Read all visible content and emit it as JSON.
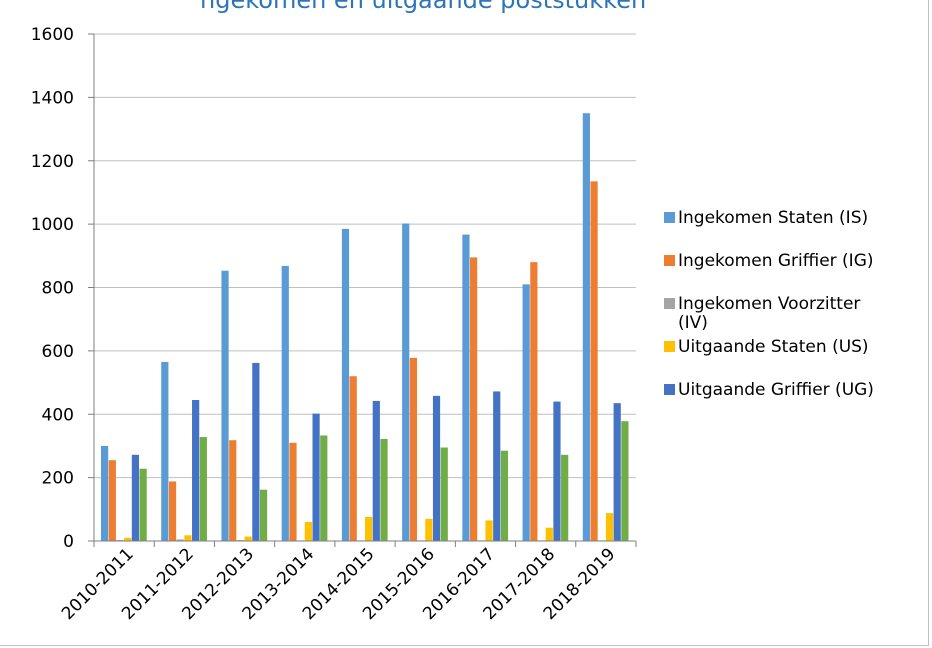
{
  "chart_data": {
    "type": "bar",
    "title": "ngekomen en uitgaande poststukken",
    "categories": [
      "2010-2011",
      "2011-2012",
      "2012-2013",
      "2013-2014",
      "2014-2015",
      "2015-2016",
      "2016-2017",
      "2017-2018",
      "2018-2019"
    ],
    "ylim": [
      0,
      1600
    ],
    "yticks": [
      0,
      200,
      400,
      600,
      800,
      1000,
      1200,
      1400,
      1600
    ],
    "grid": true,
    "legend_position": "right",
    "series": [
      {
        "name": "Ingekomen Staten (IS)",
        "color": "#5b9bd5",
        "values": [
          300,
          565,
          853,
          868,
          985,
          1002,
          967,
          810,
          1350
        ]
      },
      {
        "name": "Ingekomen Griffier (IG)",
        "color": "#ed7d31",
        "values": [
          255,
          188,
          318,
          310,
          520,
          578,
          895,
          880,
          1135
        ]
      },
      {
        "name": "Ingekomen Voorzitter (IV)",
        "color": "#a5a5a5",
        "values": [
          3,
          5,
          3,
          2,
          2,
          2,
          2,
          2,
          2
        ]
      },
      {
        "name": "Uitgaande Staten (US)",
        "color": "#ffc000",
        "values": [
          10,
          18,
          14,
          60,
          76,
          70,
          65,
          42,
          88
        ]
      },
      {
        "name": "Uitgaande Griffier (UG)",
        "color": "#4472c4",
        "values": [
          272,
          445,
          562,
          402,
          442,
          458,
          472,
          440,
          435
        ]
      },
      {
        "name": "",
        "color": "#70ad47",
        "values": [
          228,
          328,
          162,
          333,
          322,
          295,
          285,
          272,
          378
        ]
      }
    ],
    "legend": [
      {
        "lines": [
          "Ingekomen Staten (IS)"
        ],
        "color": "#5b9bd5"
      },
      {
        "lines": [
          "Ingekomen Griffier (IG)"
        ],
        "color": "#ed7d31"
      },
      {
        "lines": [
          "Ingekomen Voorzitter",
          "(IV)"
        ],
        "color": "#a5a5a5"
      },
      {
        "lines": [
          "Uitgaande Staten (US)"
        ],
        "color": "#ffc000"
      },
      {
        "lines": [
          "Uitgaande Griffier (UG)"
        ],
        "color": "#4472c4"
      }
    ]
  }
}
